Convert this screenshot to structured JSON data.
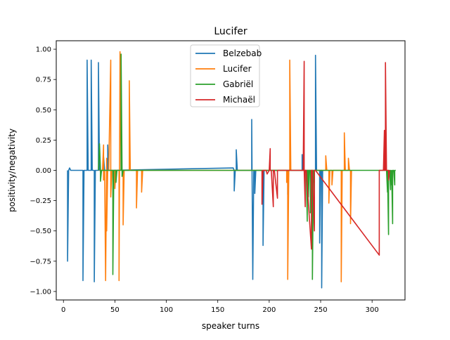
{
  "chart_data": {
    "type": "line",
    "title": "Lucifer",
    "xlabel": "speaker turns",
    "ylabel": "positivity/negativity",
    "xlim": [
      -7,
      332
    ],
    "ylim": [
      -1.07,
      1.07
    ],
    "xticks": [
      0,
      50,
      100,
      150,
      200,
      250,
      300
    ],
    "yticks": [
      -1.0,
      -0.75,
      -0.5,
      -0.25,
      0.0,
      0.25,
      0.5,
      0.75,
      1.0
    ],
    "ytick_labels": [
      "−1.00",
      "−0.75",
      "−0.50",
      "−0.25",
      "0.00",
      "0.25",
      "0.50",
      "0.75",
      "1.00"
    ],
    "grid": false,
    "legend_position": "top-center",
    "series": [
      {
        "name": "Belzebab",
        "color": "#1f77b4",
        "x": [
          4,
          4,
          5,
          6,
          6,
          7,
          19,
          19,
          20,
          23,
          23,
          24,
          27,
          27,
          28,
          30,
          30,
          31,
          34,
          34,
          35,
          39,
          39,
          40,
          43,
          43,
          44,
          165,
          166,
          166,
          167,
          168,
          168,
          169,
          183,
          183,
          184,
          185,
          186,
          186,
          187,
          194,
          194,
          195,
          218,
          218,
          219,
          232,
          232,
          233,
          245,
          245,
          246,
          249,
          249,
          250,
          251,
          251,
          252
        ],
        "y": [
          0,
          -0.75,
          0,
          0.02,
          0.02,
          0,
          0,
          -0.91,
          0,
          0,
          0.91,
          0,
          0,
          0.91,
          0,
          0,
          -0.92,
          0,
          0,
          0.89,
          0,
          0,
          0.11,
          0,
          0,
          0.21,
          0,
          0.02,
          0,
          -0.17,
          0,
          0,
          0.17,
          0,
          0,
          0.42,
          -0.9,
          0,
          0,
          -0.19,
          0,
          0,
          -0.62,
          0,
          0,
          -0.2,
          0,
          0,
          0.13,
          0,
          0,
          0.95,
          0,
          0,
          -0.6,
          0,
          0,
          -0.97,
          0
        ]
      },
      {
        "name": "Lucifer",
        "color": "#ff7f0e",
        "x": [
          35,
          38,
          39,
          39,
          40,
          41,
          42,
          42,
          43,
          44,
          46,
          46,
          47,
          50,
          50,
          51,
          54,
          54,
          55,
          56,
          58,
          58,
          59,
          64,
          64,
          65,
          71,
          71,
          72,
          76,
          76,
          77,
          217,
          217,
          218,
          218,
          219,
          220,
          220,
          221,
          255,
          255,
          256,
          258,
          258,
          259,
          261,
          261,
          262,
          270,
          270,
          271,
          273,
          273,
          274,
          277,
          277,
          278,
          279,
          279,
          280
        ],
        "y": [
          0,
          0,
          0.21,
          -0.08,
          0,
          -0.91,
          0.1,
          -0.5,
          0,
          0,
          0.91,
          -0.22,
          0,
          0,
          -0.15,
          0,
          0,
          -0.91,
          0.98,
          0,
          0,
          -0.45,
          0,
          0,
          0.74,
          0,
          0,
          -0.31,
          0,
          0,
          -0.18,
          0,
          0,
          -0.1,
          0,
          -0.9,
          0,
          0,
          0.91,
          0,
          0,
          0.12,
          0,
          0,
          -0.27,
          0,
          0,
          -0.12,
          0,
          0,
          -0.92,
          0,
          0,
          0.31,
          0,
          0,
          0.1,
          0,
          0,
          -0.44,
          0
        ]
      },
      {
        "name": "Gabriël",
        "color": "#2ca02c",
        "x": [
          34,
          35,
          36,
          36,
          37,
          48,
          48,
          49,
          51,
          51,
          52,
          56,
          56,
          57,
          57,
          58,
          236,
          237,
          237,
          238,
          238,
          239,
          240,
          240,
          241,
          242,
          242,
          243,
          243,
          244,
          314,
          315,
          315,
          316,
          316,
          317,
          318,
          318,
          319,
          319,
          320,
          320,
          321,
          322,
          322,
          323
        ],
        "y": [
          0,
          0.22,
          0,
          -0.09,
          0,
          0,
          -0.86,
          0,
          0,
          -0.1,
          0,
          0,
          0.96,
          0,
          -0.05,
          0,
          0,
          -0.42,
          0,
          0,
          -0.22,
          0,
          0,
          -0.35,
          0,
          0,
          -0.9,
          0,
          -0.1,
          0,
          0,
          -0.18,
          0,
          -0.53,
          0,
          0,
          -0.16,
          0,
          -0.12,
          0,
          -0.44,
          0,
          0,
          -0.12,
          0,
          0
        ]
      },
      {
        "name": "Michaël",
        "color": "#d62728",
        "x": [
          193,
          193,
          194,
          197,
          198,
          200,
          201,
          201,
          202,
          204,
          204,
          205,
          208,
          208,
          209,
          233,
          234,
          234,
          235,
          235,
          236,
          241,
          241,
          242,
          244,
          244,
          245,
          307,
          307,
          308,
          311,
          312,
          312,
          313,
          313,
          314,
          316,
          316,
          317
        ],
        "y": [
          0,
          -0.28,
          0,
          0,
          -0.03,
          0,
          0.18,
          0,
          0,
          -0.3,
          0,
          0,
          -0.23,
          0,
          0,
          0,
          0.9,
          0,
          -0.3,
          0,
          0,
          -0.65,
          0,
          0,
          -0.5,
          0,
          0,
          -0.7,
          0,
          0,
          0,
          0.33,
          0,
          0,
          0.89,
          0,
          0,
          -0.08,
          0
        ]
      }
    ]
  }
}
